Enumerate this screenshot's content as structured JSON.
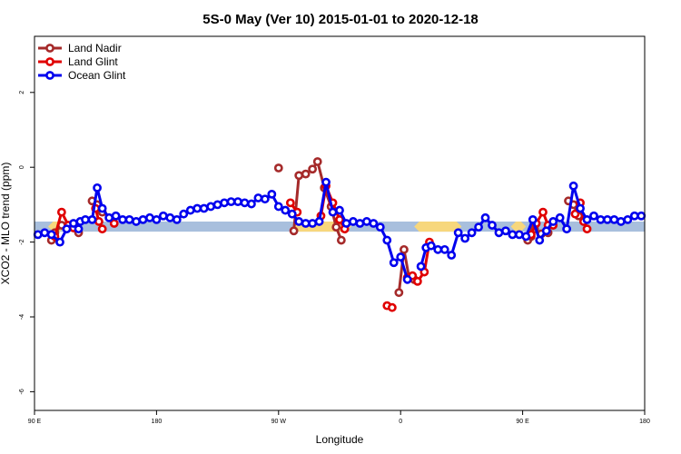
{
  "chart_data": {
    "type": "line",
    "title": "5S-0 May (Ver 10)   2015-01-01 to 2020-12-18",
    "xlabel": "Longitude",
    "ylabel": "XCO2 - MLO trend (ppm)",
    "xlim": [
      90,
      450
    ],
    "ylim": [
      -6.5,
      3.5
    ],
    "x_ticks": [
      {
        "value": 90,
        "label": "90 E"
      },
      {
        "value": 162,
        "label": "180"
      },
      {
        "value": 234,
        "label": "90 W"
      },
      {
        "value": 306,
        "label": "0"
      },
      {
        "value": 378,
        "label": "90 E"
      },
      {
        "value": 450,
        "label": "180"
      }
    ],
    "y_ticks": [
      {
        "value": -6,
        "label": "-6"
      },
      {
        "value": -4,
        "label": "-4"
      },
      {
        "value": -2,
        "label": "-2"
      },
      {
        "value": 0,
        "label": "0"
      },
      {
        "value": 2,
        "label": "2"
      }
    ],
    "grid": false,
    "legend_position": "top-left",
    "bands": [
      {
        "y_min": -1.72,
        "y_max": -1.45,
        "color": "#a8bfdd"
      },
      {
        "x_min": 98,
        "x_max": 108,
        "y_min": -1.72,
        "y_max": -1.45,
        "color": "#f7d77c"
      },
      {
        "x_min": 243,
        "x_max": 277,
        "y_min": -1.72,
        "y_max": -1.45,
        "color": "#f7d77c"
      },
      {
        "x_min": 314,
        "x_max": 342,
        "y_min": -1.72,
        "y_max": -1.45,
        "color": "#f7d77c"
      },
      {
        "x_min": 371,
        "x_max": 380,
        "y_min": -1.72,
        "y_max": -1.45,
        "color": "#f7d77c"
      }
    ],
    "series": [
      {
        "name": "Land Nadir",
        "color": "#a52a2a",
        "segments": [
          [
            [
              100,
              -1.95
            ],
            [
              102,
              -1.75
            ],
            [
              106,
              -1.55
            ],
            [
              110,
              -1.6
            ],
            [
              116,
              -1.75
            ]
          ],
          [
            [
              124,
              -0.9
            ],
            [
              127,
              -1.0
            ],
            [
              130,
              -1.2
            ]
          ],
          [
            [
              234,
              -0.02
            ]
          ],
          [
            [
              243,
              -1.7
            ],
            [
              246,
              -0.22
            ],
            [
              250,
              -0.18
            ],
            [
              254,
              -0.05
            ],
            [
              257,
              0.15
            ],
            [
              261,
              -0.55
            ],
            [
              265,
              -1.05
            ],
            [
              268,
              -1.6
            ],
            [
              271,
              -1.95
            ]
          ],
          [
            [
              305,
              -3.35
            ],
            [
              308,
              -2.2
            ],
            [
              311,
              -2.95
            ],
            [
              314,
              -3.0
            ]
          ],
          [
            [
              381,
              -1.95
            ],
            [
              383,
              -1.85
            ],
            [
              385,
              -1.65
            ],
            [
              389,
              -1.78
            ],
            [
              393,
              -1.75
            ]
          ],
          [
            [
              405,
              -0.9
            ],
            [
              408,
              -1.0
            ],
            [
              411,
              -1.3
            ]
          ]
        ]
      },
      {
        "name": "Land Glint",
        "color": "#e00000",
        "segments": [
          [
            [
              102,
              -1.85
            ],
            [
              106,
              -1.2
            ],
            [
              110,
              -1.55
            ],
            [
              113,
              -1.62
            ]
          ],
          [
            [
              126,
              -1.1
            ],
            [
              128,
              -1.45
            ],
            [
              130,
              -1.65
            ]
          ],
          [
            [
              137,
              -1.5
            ]
          ],
          [
            [
              241,
              -0.95
            ],
            [
              245,
              -1.2
            ]
          ],
          [
            [
              259,
              -1.3
            ],
            [
              262,
              -0.5
            ],
            [
              266,
              -0.95
            ],
            [
              270,
              -1.4
            ],
            [
              273,
              -1.65
            ]
          ],
          [
            [
              298,
              -3.7
            ],
            [
              301,
              -3.75
            ]
          ],
          [
            [
              310,
              -2.95
            ],
            [
              313,
              -2.9
            ],
            [
              316,
              -3.05
            ],
            [
              320,
              -2.8
            ],
            [
              323,
              -2.0
            ]
          ],
          [
            [
              383,
              -1.8
            ],
            [
              386,
              -1.5
            ],
            [
              390,
              -1.2
            ],
            [
              393,
              -1.55
            ],
            [
              396,
              -1.55
            ]
          ],
          [
            [
              409,
              -1.25
            ],
            [
              412,
              -0.95
            ],
            [
              414,
              -1.45
            ],
            [
              416,
              -1.65
            ]
          ]
        ]
      },
      {
        "name": "Ocean Glint",
        "color": "#0000ee",
        "segments": [
          [
            [
              92,
              -1.8
            ],
            [
              96,
              -1.75
            ],
            [
              100,
              -1.8
            ],
            [
              105,
              -2.0
            ],
            [
              109,
              -1.65
            ],
            [
              113,
              -1.5
            ],
            [
              117,
              -1.45
            ],
            [
              120,
              -1.4
            ],
            [
              124,
              -1.4
            ],
            [
              127,
              -0.55
            ],
            [
              130,
              -1.1
            ],
            [
              134,
              -1.35
            ],
            [
              138,
              -1.3
            ],
            [
              142,
              -1.4
            ],
            [
              146,
              -1.4
            ],
            [
              150,
              -1.45
            ],
            [
              154,
              -1.4
            ],
            [
              158,
              -1.35
            ],
            [
              162,
              -1.4
            ],
            [
              166,
              -1.3
            ],
            [
              170,
              -1.35
            ],
            [
              174,
              -1.4
            ],
            [
              178,
              -1.25
            ],
            [
              182,
              -1.15
            ],
            [
              186,
              -1.1
            ],
            [
              190,
              -1.1
            ],
            [
              194,
              -1.05
            ],
            [
              198,
              -1.0
            ],
            [
              202,
              -0.95
            ],
            [
              206,
              -0.92
            ],
            [
              210,
              -0.92
            ],
            [
              214,
              -0.95
            ],
            [
              218,
              -0.98
            ],
            [
              222,
              -0.82
            ],
            [
              226,
              -0.85
            ],
            [
              230,
              -0.72
            ],
            [
              234,
              -1.05
            ],
            [
              238,
              -1.15
            ],
            [
              242,
              -1.25
            ],
            [
              246,
              -1.45
            ],
            [
              250,
              -1.5
            ],
            [
              254,
              -1.5
            ],
            [
              258,
              -1.45
            ],
            [
              262,
              -0.4
            ],
            [
              266,
              -1.2
            ],
            [
              270,
              -1.15
            ],
            [
              274,
              -1.5
            ],
            [
              278,
              -1.45
            ],
            [
              282,
              -1.5
            ],
            [
              286,
              -1.45
            ],
            [
              290,
              -1.5
            ],
            [
              294,
              -1.6
            ],
            [
              298,
              -1.95
            ],
            [
              302,
              -2.55
            ],
            [
              306,
              -2.4
            ],
            [
              310,
              -3.0
            ]
          ],
          [
            [
              116,
              -1.65
            ]
          ],
          [
            [
              318,
              -2.65
            ],
            [
              321,
              -2.15
            ],
            [
              324,
              -2.1
            ],
            [
              328,
              -2.2
            ],
            [
              332,
              -2.2
            ],
            [
              336,
              -2.35
            ],
            [
              340,
              -1.75
            ],
            [
              344,
              -1.9
            ],
            [
              348,
              -1.75
            ],
            [
              352,
              -1.6
            ],
            [
              356,
              -1.35
            ],
            [
              360,
              -1.55
            ],
            [
              364,
              -1.75
            ],
            [
              368,
              -1.7
            ],
            [
              372,
              -1.8
            ],
            [
              376,
              -1.8
            ],
            [
              380,
              -1.85
            ],
            [
              384,
              -1.4
            ],
            [
              388,
              -1.95
            ],
            [
              392,
              -1.7
            ],
            [
              396,
              -1.45
            ],
            [
              400,
              -1.35
            ],
            [
              404,
              -1.65
            ],
            [
              408,
              -0.5
            ],
            [
              412,
              -1.1
            ],
            [
              416,
              -1.4
            ],
            [
              420,
              -1.3
            ],
            [
              424,
              -1.4
            ],
            [
              428,
              -1.4
            ],
            [
              432,
              -1.4
            ],
            [
              436,
              -1.45
            ],
            [
              440,
              -1.4
            ],
            [
              444,
              -1.3
            ],
            [
              448,
              -1.3
            ]
          ]
        ]
      }
    ]
  }
}
